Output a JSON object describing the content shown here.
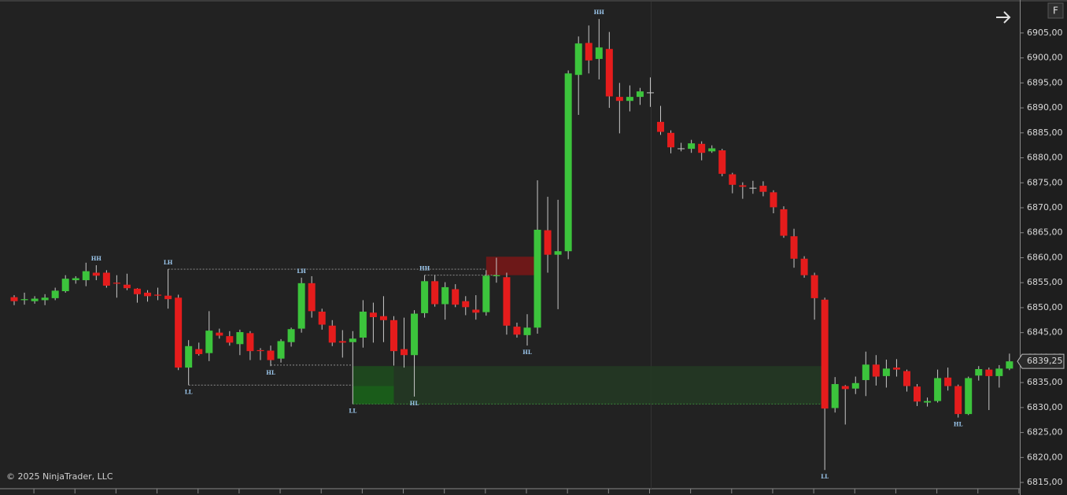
{
  "chart_data": {
    "type": "candlestick",
    "up_color": "#3cc43c",
    "down_color": "#e51c1c",
    "wick_color": "#c8c8c8",
    "open": [
      6852.1,
      6851.5,
      6851.3,
      6851.5,
      6851.9,
      6853.3,
      6855.5,
      6855.5,
      6857.0,
      6857.0,
      6855.0,
      6854.6,
      6853.8,
      6853.0,
      6852.6,
      6852.4,
      6852.0,
      6838.0,
      6841.7,
      6840.9,
      6845.0,
      6844.3,
      6842.7,
      6844.9,
      6841.5,
      6841.4,
      6839.8,
      6843.1,
      6845.8,
      6854.9,
      6849.2,
      6846.4,
      6843.3,
      6843.1,
      6844.0,
      6849.0,
      6848.3,
      6847.5,
      6841.7,
      6840.5,
      6848.9,
      6855.3,
      6850.7,
      6853.7,
      6851.3,
      6849.6,
      6849.1,
      6856.3,
      6856.1,
      6846.2,
      6844.5,
      6846.0,
      6865.5,
      6860.6,
      6861.3,
      6896.6,
      6903.0,
      6899.8,
      6901.8,
      6892.2,
      6891.4,
      6892.2,
      6893.1,
      6887.2,
      6885.0,
      6881.9,
      6881.8,
      6882.8,
      6881.3,
      6881.5,
      6876.7,
      6874.5,
      6874.0,
      6874.4,
      6873.1,
      6869.7,
      6864.3,
      6859.8,
      6856.5,
      6851.6,
      6829.9,
      6834.3,
      6833.8,
      6835.5,
      6838.6,
      6836.3,
      6838.0,
      6837.3,
      6834.2,
      6831.0,
      6831.3,
      6836.0,
      6834.3,
      6828.7,
      6836.4,
      6837.6,
      6836.3,
      6837.8
    ],
    "high": [
      6852.5,
      6853.0,
      6852.3,
      6852.7,
      6854.0,
      6856.5,
      6856.3,
      6859.0,
      6858.5,
      6857.5,
      6856.5,
      6856.8,
      6853.9,
      6853.5,
      6854.0,
      6857.7,
      6852.6,
      6843.5,
      6843.0,
      6849.3,
      6845.8,
      6845.3,
      6845.6,
      6845.3,
      6841.9,
      6842.4,
      6843.7,
      6846.0,
      6856.0,
      6856.3,
      6849.8,
      6847.5,
      6845.5,
      6845.3,
      6851.5,
      6851.0,
      6852.3,
      6848.3,
      6848.0,
      6849.5,
      6856.5,
      6856.5,
      6855.1,
      6854.7,
      6852.3,
      6852.5,
      6857.5,
      6860.0,
      6857.0,
      6847.0,
      6848.7,
      6875.5,
      6872.2,
      6871.6,
      6897.5,
      6904.3,
      6906.5,
      6907.8,
      6905.2,
      6895.0,
      6894.5,
      6894.0,
      6896.1,
      6890.4,
      6885.5,
      6883.0,
      6883.6,
      6883.3,
      6882.5,
      6881.8,
      6877.0,
      6875.1,
      6875.4,
      6875.3,
      6873.5,
      6870.3,
      6865.8,
      6860.3,
      6857.0,
      6852.0,
      6836.1,
      6834.5,
      6836.2,
      6841.2,
      6840.5,
      6839.6,
      6839.7,
      6837.6,
      6834.7,
      6832.0,
      6837.6,
      6838.0,
      6834.6,
      6836.2,
      6838.3,
      6838.0,
      6838.5,
      6840.8
    ],
    "low": [
      6850.5,
      6850.6,
      6850.8,
      6850.5,
      6851.5,
      6853.0,
      6854.8,
      6854.3,
      6855.5,
      6854.0,
      6852.0,
      6853.5,
      6851.0,
      6851.2,
      6851.5,
      6849.8,
      6837.5,
      6834.5,
      6840.4,
      6839.3,
      6843.8,
      6842.4,
      6840.5,
      6839.5,
      6839.5,
      6838.3,
      6839.0,
      6842.2,
      6845.0,
      6848.0,
      6845.6,
      6842.3,
      6840.0,
      6830.7,
      6842.0,
      6843.0,
      6843.1,
      6838.4,
      6838.0,
      6832.2,
      6848.0,
      6850.2,
      6847.6,
      6850.1,
      6848.5,
      6847.6,
      6848.4,
      6855.0,
      6844.6,
      6844.0,
      6842.4,
      6844.8,
      6857.0,
      6849.7,
      6859.7,
      6888.6,
      6896.9,
      6895.7,
      6890.0,
      6884.9,
      6889.3,
      6890.6,
      6890.2,
      6884.6,
      6880.9,
      6881.3,
      6881.0,
      6879.5,
      6881.0,
      6876.3,
      6872.9,
      6871.8,
      6872.8,
      6872.3,
      6868.9,
      6864.0,
      6858.0,
      6856.0,
      6847.6,
      6817.5,
      6829.0,
      6826.6,
      6832.7,
      6832.3,
      6834.4,
      6834.0,
      6836.2,
      6833.2,
      6830.3,
      6830.2,
      6831.0,
      6833.4,
      6828.0,
      6828.5,
      6835.4,
      6829.5,
      6834.0,
      6837.5
    ],
    "close": [
      6851.3,
      6851.7,
      6851.8,
      6852.0,
      6853.4,
      6855.8,
      6855.9,
      6857.3,
      6856.4,
      6854.4,
      6854.8,
      6853.9,
      6852.7,
      6852.3,
      6852.4,
      6851.7,
      6838.0,
      6842.3,
      6840.7,
      6845.4,
      6844.4,
      6843.0,
      6845.1,
      6841.3,
      6841.3,
      6839.5,
      6843.3,
      6845.7,
      6854.9,
      6849.3,
      6846.6,
      6843.0,
      6843.0,
      6843.8,
      6849.2,
      6848.1,
      6847.5,
      6841.3,
      6840.5,
      6848.8,
      6855.3,
      6850.7,
      6854.1,
      6850.6,
      6850.1,
      6849.0,
      6856.4,
      6856.5,
      6846.4,
      6844.6,
      6846.0,
      6865.6,
      6860.6,
      6861.3,
      6896.9,
      6902.9,
      6899.5,
      6902.1,
      6892.3,
      6891.4,
      6892.2,
      6893.3,
      6893.1,
      6885.2,
      6882.1,
      6881.9,
      6882.9,
      6881.0,
      6881.9,
      6876.8,
      6874.6,
      6874.2,
      6874.0,
      6873.2,
      6870.1,
      6864.4,
      6859.8,
      6856.5,
      6851.9,
      6829.8,
      6834.7,
      6833.7,
      6834.9,
      6838.6,
      6836.2,
      6837.8,
      6837.6,
      6834.3,
      6831.2,
      6831.3,
      6835.9,
      6834.3,
      6828.7,
      6835.9,
      6837.7,
      6836.3,
      6837.8,
      6839.25
    ],
    "ylim": [
      6813.75,
      6911.6
    ],
    "yticks": [
      {
        "value": 6815,
        "label": "6815,00"
      },
      {
        "value": 6820,
        "label": "6820,00"
      },
      {
        "value": 6825,
        "label": "6825,00"
      },
      {
        "value": 6830,
        "label": "6830,00"
      },
      {
        "value": 6835,
        "label": "6835,00"
      },
      {
        "value": 6840,
        "label": "6840,00"
      },
      {
        "value": 6845,
        "label": "6845,00"
      },
      {
        "value": 6850,
        "label": "6850,00"
      },
      {
        "value": 6855,
        "label": "6855,00"
      },
      {
        "value": 6860,
        "label": "6860,00"
      },
      {
        "value": 6865,
        "label": "6865,00"
      },
      {
        "value": 6870,
        "label": "6870,00"
      },
      {
        "value": 6875,
        "label": "6875,00"
      },
      {
        "value": 6880,
        "label": "6880,00"
      },
      {
        "value": 6885,
        "label": "6885,00"
      },
      {
        "value": 6890,
        "label": "6890,00"
      },
      {
        "value": 6895,
        "label": "6895,00"
      },
      {
        "value": 6900,
        "label": "6900,00"
      },
      {
        "value": 6905,
        "label": "6905,00"
      }
    ],
    "last_price": {
      "value": 6839.25,
      "label": "6839,25"
    },
    "zones": [
      {
        "from": 46,
        "to": 51,
        "top": 6860.2,
        "bottom": 6856.5,
        "color": "#7a1616"
      },
      {
        "from": 37,
        "to": 79,
        "top": 6838.3,
        "bottom": 6830.7,
        "color": "#233a23"
      },
      {
        "from": 33,
        "to": 37,
        "top": 6838.3,
        "bottom": 6830.7,
        "color": "#1d4e1d"
      },
      {
        "from": 33,
        "to": 37,
        "top": 6834.3,
        "bottom": 6830.7,
        "color": "#1a601a"
      }
    ],
    "levels": [
      {
        "value": 6857.7,
        "from": 15,
        "to": 46
      },
      {
        "value": 6856.5,
        "from": 40,
        "to": 47
      },
      {
        "value": 6838.5,
        "from": 25,
        "to": 33
      },
      {
        "value": 6834.5,
        "from": 17,
        "to": 33
      }
    ],
    "annotations": [
      {
        "text": "HH",
        "candle": 8,
        "at": "high"
      },
      {
        "text": "LH",
        "candle": 15,
        "at": "high"
      },
      {
        "text": "LL",
        "candle": 17,
        "at": "low"
      },
      {
        "text": "HL",
        "candle": 25,
        "at": "low"
      },
      {
        "text": "LH",
        "candle": 28,
        "at": "high"
      },
      {
        "text": "LL",
        "candle": 33,
        "at": "low"
      },
      {
        "text": "HL",
        "candle": 39,
        "at": "low"
      },
      {
        "text": "HH",
        "candle": 40,
        "at": "high"
      },
      {
        "text": "HL",
        "candle": 50,
        "at": "low"
      },
      {
        "text": "HH",
        "candle": 57,
        "at": "high"
      },
      {
        "text": "LL",
        "candle": 79,
        "at": "low"
      },
      {
        "text": "HL",
        "candle": 92,
        "at": "low"
      }
    ],
    "copyright": "© 2025 NinjaTrader, LLC",
    "button": "F"
  }
}
